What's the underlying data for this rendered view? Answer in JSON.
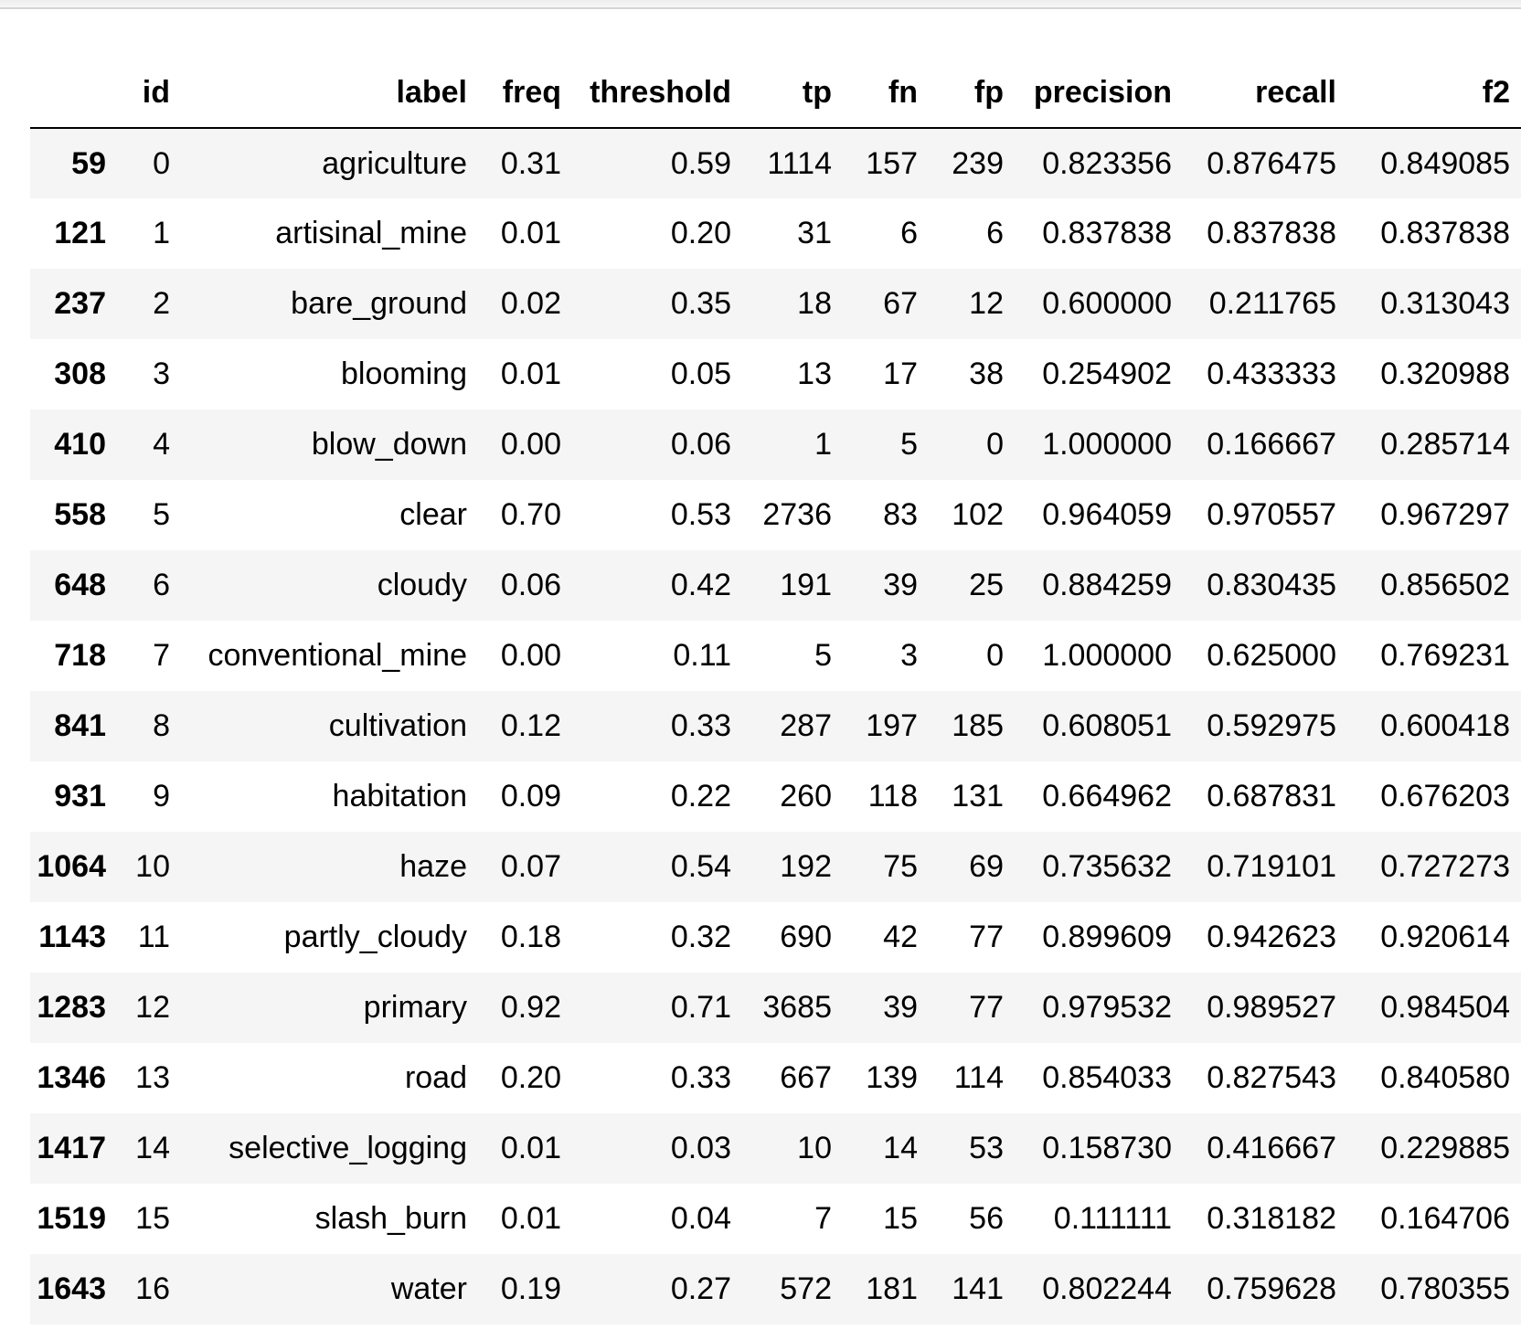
{
  "table": {
    "columns": [
      "",
      "id",
      "label",
      "freq",
      "threshold",
      "tp",
      "fn",
      "fp",
      "precision",
      "recall",
      "f2"
    ],
    "rows": [
      {
        "index": "59",
        "cells": [
          "0",
          "agriculture",
          "0.31",
          "0.59",
          "1114",
          "157",
          "239",
          "0.823356",
          "0.876475",
          "0.849085"
        ]
      },
      {
        "index": "121",
        "cells": [
          "1",
          "artisinal_mine",
          "0.01",
          "0.20",
          "31",
          "6",
          "6",
          "0.837838",
          "0.837838",
          "0.837838"
        ]
      },
      {
        "index": "237",
        "cells": [
          "2",
          "bare_ground",
          "0.02",
          "0.35",
          "18",
          "67",
          "12",
          "0.600000",
          "0.211765",
          "0.313043"
        ]
      },
      {
        "index": "308",
        "cells": [
          "3",
          "blooming",
          "0.01",
          "0.05",
          "13",
          "17",
          "38",
          "0.254902",
          "0.433333",
          "0.320988"
        ]
      },
      {
        "index": "410",
        "cells": [
          "4",
          "blow_down",
          "0.00",
          "0.06",
          "1",
          "5",
          "0",
          "1.000000",
          "0.166667",
          "0.285714"
        ]
      },
      {
        "index": "558",
        "cells": [
          "5",
          "clear",
          "0.70",
          "0.53",
          "2736",
          "83",
          "102",
          "0.964059",
          "0.970557",
          "0.967297"
        ]
      },
      {
        "index": "648",
        "cells": [
          "6",
          "cloudy",
          "0.06",
          "0.42",
          "191",
          "39",
          "25",
          "0.884259",
          "0.830435",
          "0.856502"
        ]
      },
      {
        "index": "718",
        "cells": [
          "7",
          "conventional_mine",
          "0.00",
          "0.11",
          "5",
          "3",
          "0",
          "1.000000",
          "0.625000",
          "0.769231"
        ]
      },
      {
        "index": "841",
        "cells": [
          "8",
          "cultivation",
          "0.12",
          "0.33",
          "287",
          "197",
          "185",
          "0.608051",
          "0.592975",
          "0.600418"
        ]
      },
      {
        "index": "931",
        "cells": [
          "9",
          "habitation",
          "0.09",
          "0.22",
          "260",
          "118",
          "131",
          "0.664962",
          "0.687831",
          "0.676203"
        ]
      },
      {
        "index": "1064",
        "cells": [
          "10",
          "haze",
          "0.07",
          "0.54",
          "192",
          "75",
          "69",
          "0.735632",
          "0.719101",
          "0.727273"
        ]
      },
      {
        "index": "1143",
        "cells": [
          "11",
          "partly_cloudy",
          "0.18",
          "0.32",
          "690",
          "42",
          "77",
          "0.899609",
          "0.942623",
          "0.920614"
        ]
      },
      {
        "index": "1283",
        "cells": [
          "12",
          "primary",
          "0.92",
          "0.71",
          "3685",
          "39",
          "77",
          "0.979532",
          "0.989527",
          "0.984504"
        ]
      },
      {
        "index": "1346",
        "cells": [
          "13",
          "road",
          "0.20",
          "0.33",
          "667",
          "139",
          "114",
          "0.854033",
          "0.827543",
          "0.840580"
        ]
      },
      {
        "index": "1417",
        "cells": [
          "14",
          "selective_logging",
          "0.01",
          "0.03",
          "10",
          "14",
          "53",
          "0.158730",
          "0.416667",
          "0.229885"
        ]
      },
      {
        "index": "1519",
        "cells": [
          "15",
          "slash_burn",
          "0.01",
          "0.04",
          "7",
          "15",
          "56",
          "0.111111",
          "0.318182",
          "0.164706"
        ]
      },
      {
        "index": "1643",
        "cells": [
          "16",
          "water",
          "0.19",
          "0.27",
          "572",
          "181",
          "141",
          "0.802244",
          "0.759628",
          "0.780355"
        ]
      }
    ]
  }
}
